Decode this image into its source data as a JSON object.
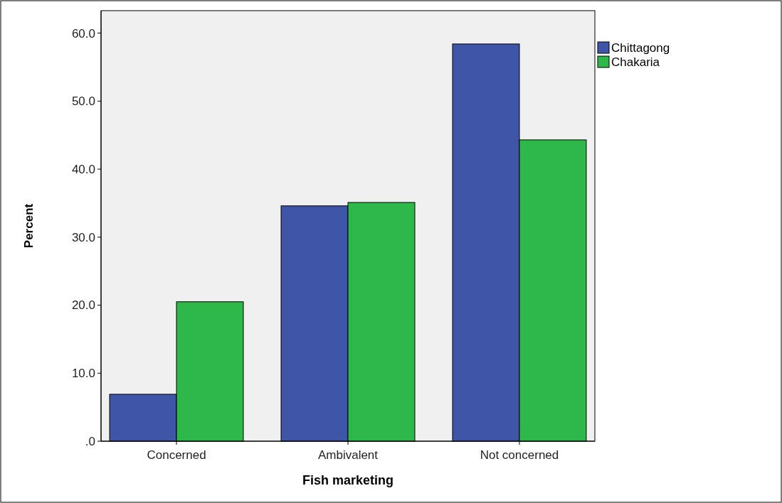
{
  "chart_data": {
    "type": "bar",
    "xlabel": "Fish marketing",
    "ylabel": "Percent",
    "categories": [
      "Concerned",
      "Ambivalent",
      "Not concerned"
    ],
    "series": [
      {
        "name": "Chittagong",
        "color": "#3f56a8",
        "values": [
          6.9,
          34.6,
          58.4
        ]
      },
      {
        "name": "Chakaria",
        "color": "#2fb84a",
        "values": [
          20.5,
          35.1,
          44.3
        ]
      }
    ],
    "ylim": [
      0,
      63.3
    ],
    "yticks": [
      {
        "value": 0,
        "label": ".0"
      },
      {
        "value": 10,
        "label": "10.0"
      },
      {
        "value": 20,
        "label": "20.0"
      },
      {
        "value": 30,
        "label": "30.0"
      },
      {
        "value": 40,
        "label": "40.0"
      },
      {
        "value": 50,
        "label": "50.0"
      },
      {
        "value": 60,
        "label": "60.0"
      }
    ],
    "grid": false,
    "legend": "top right"
  }
}
